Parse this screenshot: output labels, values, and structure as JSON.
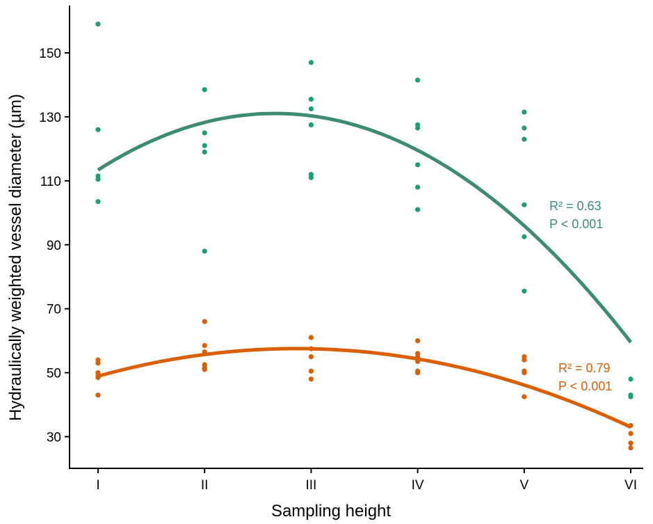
{
  "chart_data": {
    "type": "scatter",
    "xlabel": "Sampling height",
    "ylabel": "Hydraulically weighted vessel diameter (µm)",
    "categories": [
      "I",
      "II",
      "III",
      "IV",
      "V",
      "VI"
    ],
    "ylim": [
      20,
      163
    ],
    "yticks": [
      30,
      50,
      70,
      90,
      110,
      130,
      150
    ],
    "grid": false,
    "series": [
      {
        "color": "#1b9e77",
        "fit_color": "#3c8c70",
        "points": [
          [
            1,
            159
          ],
          [
            1,
            126
          ],
          [
            1,
            111.5
          ],
          [
            1,
            110.5
          ],
          [
            1,
            103.5
          ],
          [
            2,
            138.5
          ],
          [
            2,
            125
          ],
          [
            2,
            121
          ],
          [
            2,
            119
          ],
          [
            2,
            88
          ],
          [
            3,
            147
          ],
          [
            3,
            135.5
          ],
          [
            3,
            132.5
          ],
          [
            3,
            127.5
          ],
          [
            3,
            112
          ],
          [
            3,
            111
          ],
          [
            4,
            141.5
          ],
          [
            4,
            127.5
          ],
          [
            4,
            126.5
          ],
          [
            4,
            115
          ],
          [
            4,
            108
          ],
          [
            4,
            101
          ],
          [
            5,
            131.5
          ],
          [
            5,
            126.5
          ],
          [
            5,
            123
          ],
          [
            5,
            102.5
          ],
          [
            5,
            92.5
          ],
          [
            5,
            75.5
          ],
          [
            6,
            48
          ],
          [
            6,
            43
          ],
          [
            6,
            42.5
          ]
        ],
        "fit": {
          "x": [
            1,
            2,
            3,
            4,
            5,
            6
          ],
          "y": [
            113.5,
            128,
            130.5,
            119.5,
            96,
            59.5
          ]
        },
        "annotation": {
          "r2": "R² = 0.63",
          "p": "P < 0.001"
        }
      },
      {
        "color": "#d95f02",
        "fit_color": "#d95f02",
        "points": [
          [
            1,
            54
          ],
          [
            1,
            53
          ],
          [
            1,
            50
          ],
          [
            1,
            49
          ],
          [
            1,
            48.5
          ],
          [
            1,
            43
          ],
          [
            2,
            66
          ],
          [
            2,
            58.5
          ],
          [
            2,
            56.5
          ],
          [
            2,
            52.5
          ],
          [
            2,
            51.5
          ],
          [
            2,
            51
          ],
          [
            3,
            61
          ],
          [
            3,
            57.5
          ],
          [
            3,
            55
          ],
          [
            3,
            50.5
          ],
          [
            3,
            48
          ],
          [
            4,
            60
          ],
          [
            4,
            56
          ],
          [
            4,
            55
          ],
          [
            4,
            54.5
          ],
          [
            4,
            53.5
          ],
          [
            4,
            50.5
          ],
          [
            4,
            50
          ],
          [
            5,
            55
          ],
          [
            5,
            54
          ],
          [
            5,
            50.5
          ],
          [
            5,
            50
          ],
          [
            5,
            42.5
          ],
          [
            6,
            33.5
          ],
          [
            6,
            31
          ],
          [
            6,
            28
          ],
          [
            6,
            26.5
          ]
        ],
        "fit": {
          "x": [
            1,
            2,
            3,
            4,
            5,
            6
          ],
          "y": [
            49,
            55.5,
            57.5,
            54.5,
            46,
            33
          ]
        },
        "annotation": {
          "r2": "R² = 0.79",
          "p": "P < 0.001"
        }
      }
    ]
  }
}
